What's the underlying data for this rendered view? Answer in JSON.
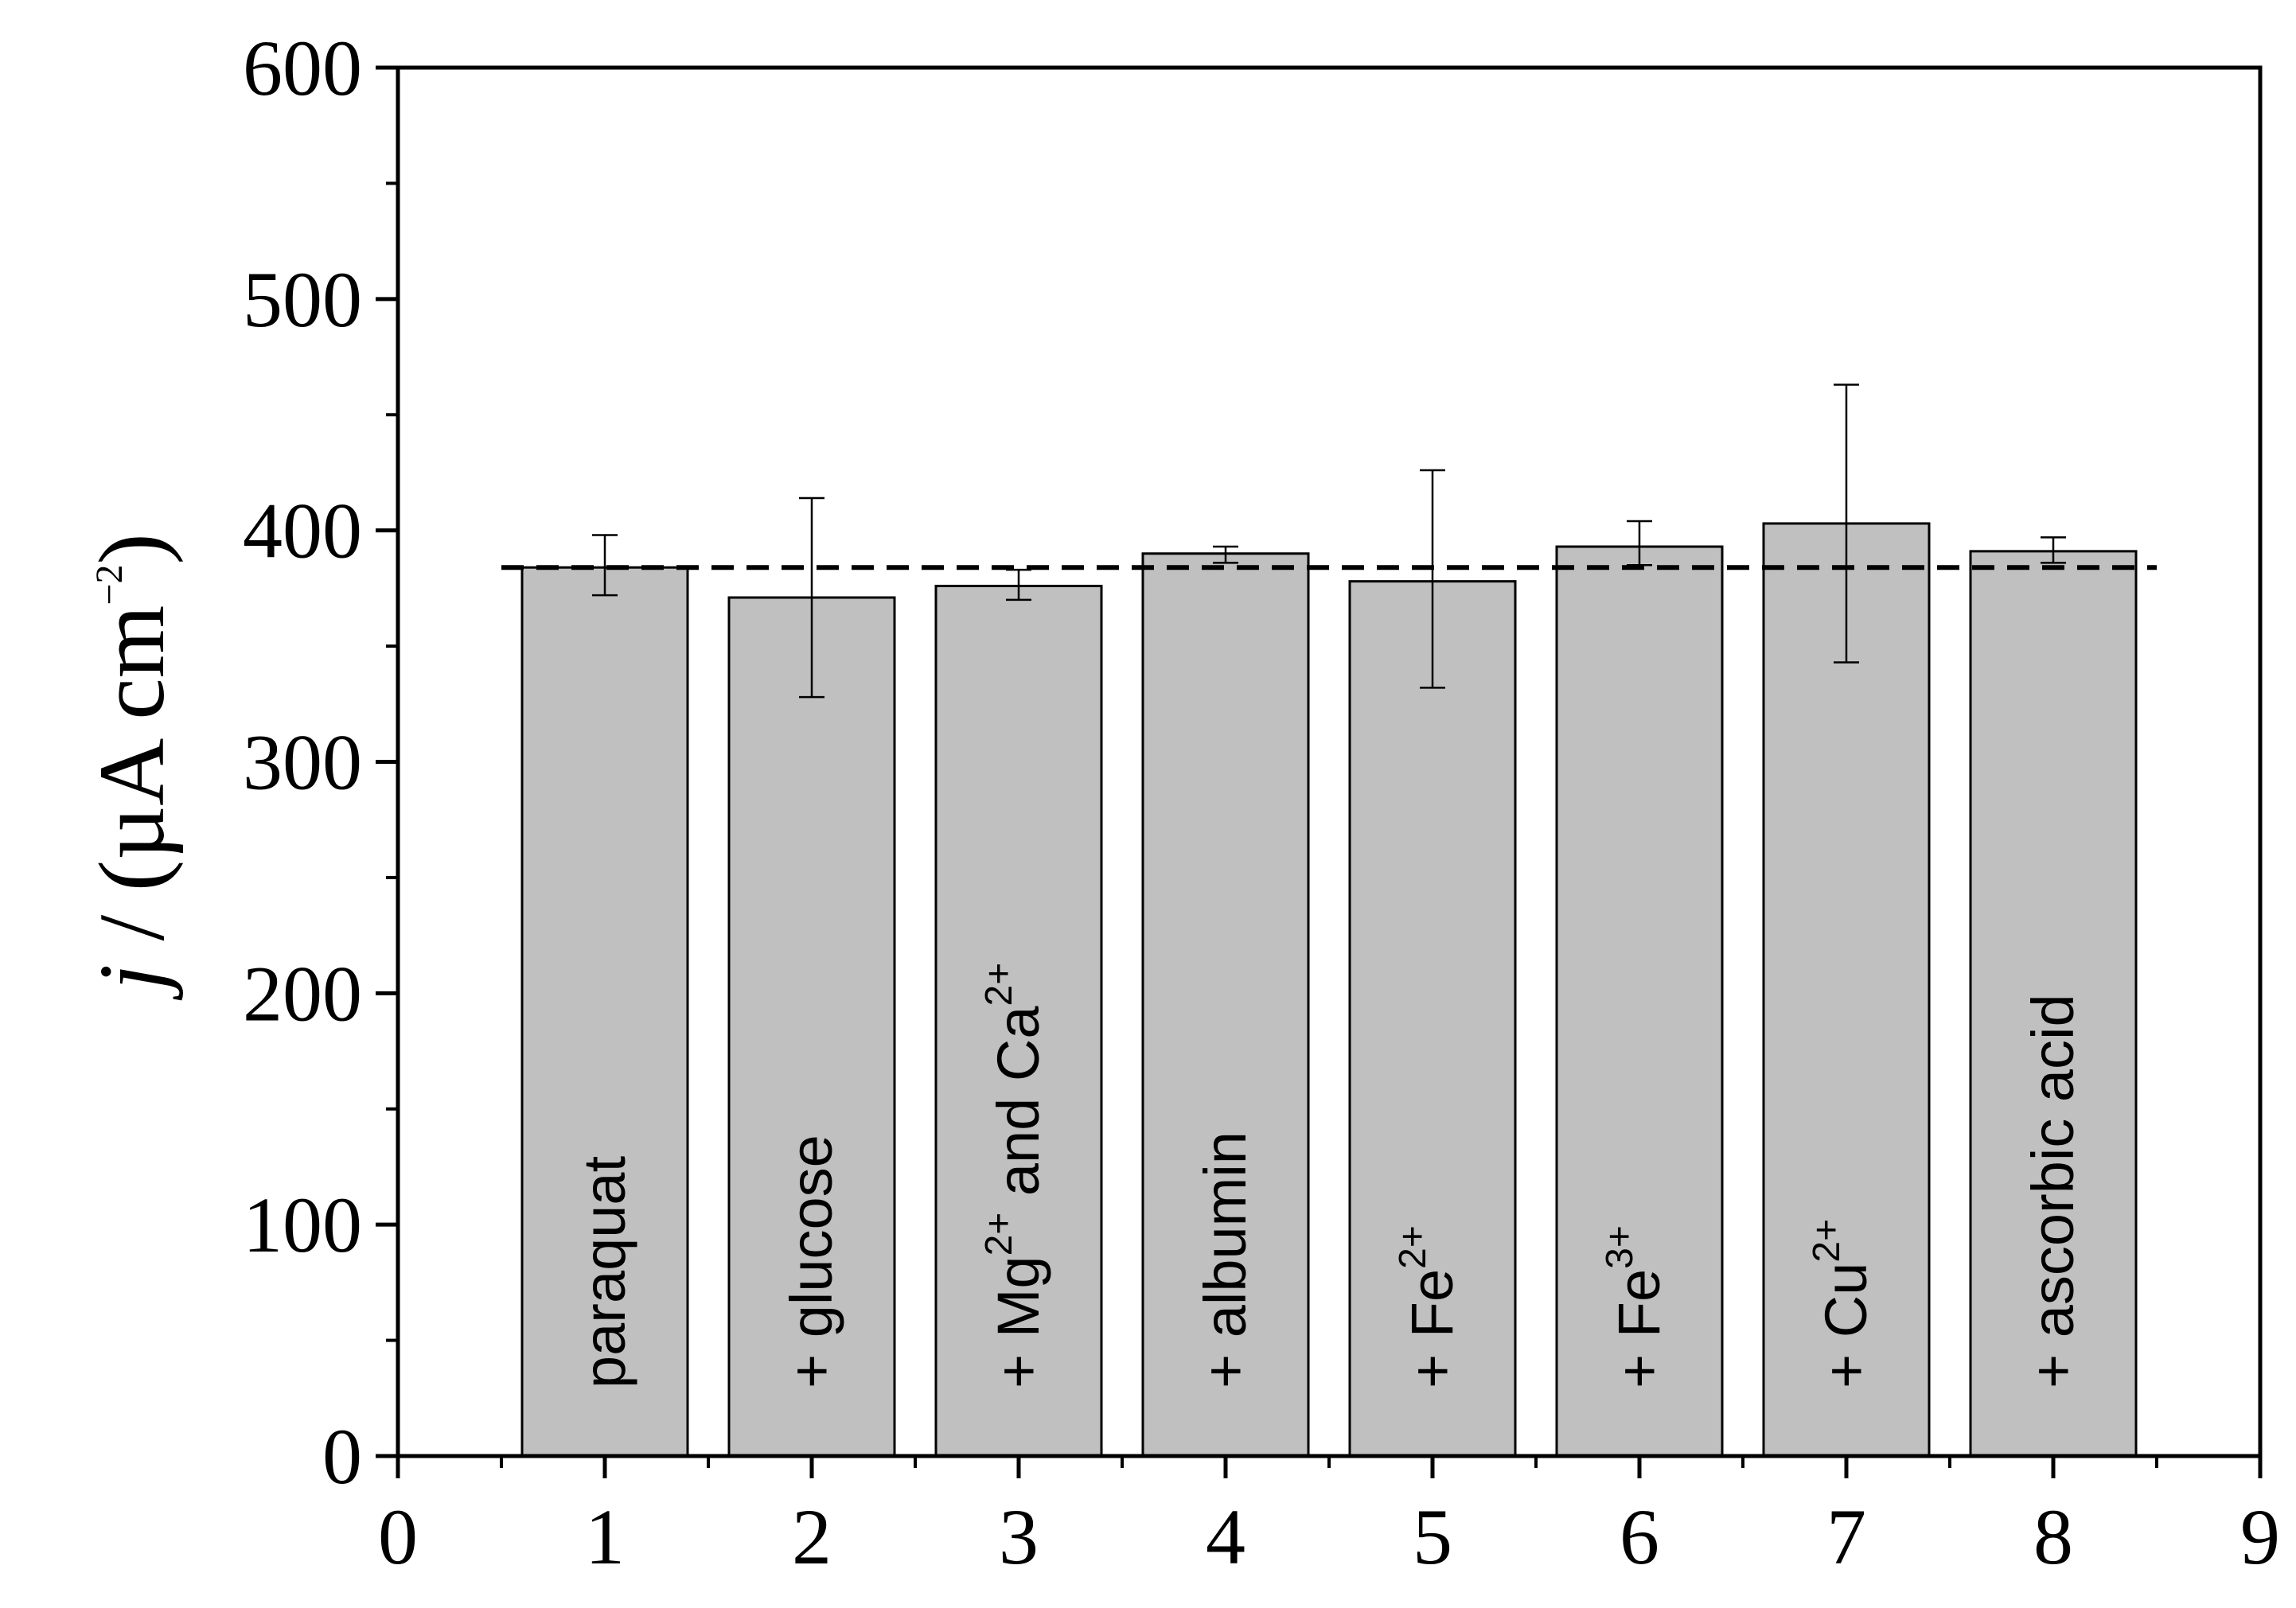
{
  "chart_data": {
    "type": "bar",
    "ylabel": {
      "italic": "j",
      "main": " / (µA cm",
      "sup": "−2",
      "close": ")"
    },
    "xlim": [
      0,
      9
    ],
    "ylim": [
      0,
      600
    ],
    "x_ticks": [
      0,
      1,
      2,
      3,
      4,
      5,
      6,
      7,
      8,
      9
    ],
    "x_minor_ticks": [
      0.5,
      1.5,
      2.5,
      3.5,
      4.5,
      5.5,
      6.5,
      7.5,
      8.5
    ],
    "y_ticks": [
      0,
      100,
      200,
      300,
      400,
      500,
      600
    ],
    "y_minor_ticks": [
      50,
      150,
      250,
      350,
      450,
      550
    ],
    "bar_width": 0.8,
    "bar_color": "#c0c0c0",
    "reference_line": {
      "value": 384,
      "style": "dashed",
      "color": "#000000"
    },
    "grid": false,
    "bars": [
      {
        "x": 1,
        "value": 384,
        "err_low": 372,
        "err_high": 398,
        "label": {
          "main": "paraquat",
          "sup": "",
          "tail": ""
        }
      },
      {
        "x": 2,
        "value": 371,
        "err_low": 328,
        "err_high": 414,
        "label": {
          "main": "+ glucose",
          "sup": "",
          "tail": ""
        }
      },
      {
        "x": 3,
        "value": 376,
        "err_low": 370,
        "err_high": 383,
        "label": {
          "main": "+ Mg",
          "sup": "2+",
          "tail": " and Ca",
          "sup2": "2+"
        }
      },
      {
        "x": 4,
        "value": 390,
        "err_low": 386,
        "err_high": 393,
        "label": {
          "main": "+ albumin",
          "sup": "",
          "tail": ""
        }
      },
      {
        "x": 5,
        "value": 378,
        "err_low": 332,
        "err_high": 426,
        "label": {
          "main": "+ Fe",
          "sup": "2+",
          "tail": ""
        }
      },
      {
        "x": 6,
        "value": 393,
        "err_low": 385,
        "err_high": 404,
        "label": {
          "main": "+ Fe",
          "sup": "3+",
          "tail": ""
        }
      },
      {
        "x": 7,
        "value": 403,
        "err_low": 343,
        "err_high": 463,
        "label": {
          "main": "+ Cu",
          "sup": "2+",
          "tail": ""
        }
      },
      {
        "x": 8,
        "value": 391,
        "err_low": 386,
        "err_high": 397,
        "label": {
          "main": "+ ascorbic acid",
          "sup": "",
          "tail": ""
        }
      }
    ]
  }
}
